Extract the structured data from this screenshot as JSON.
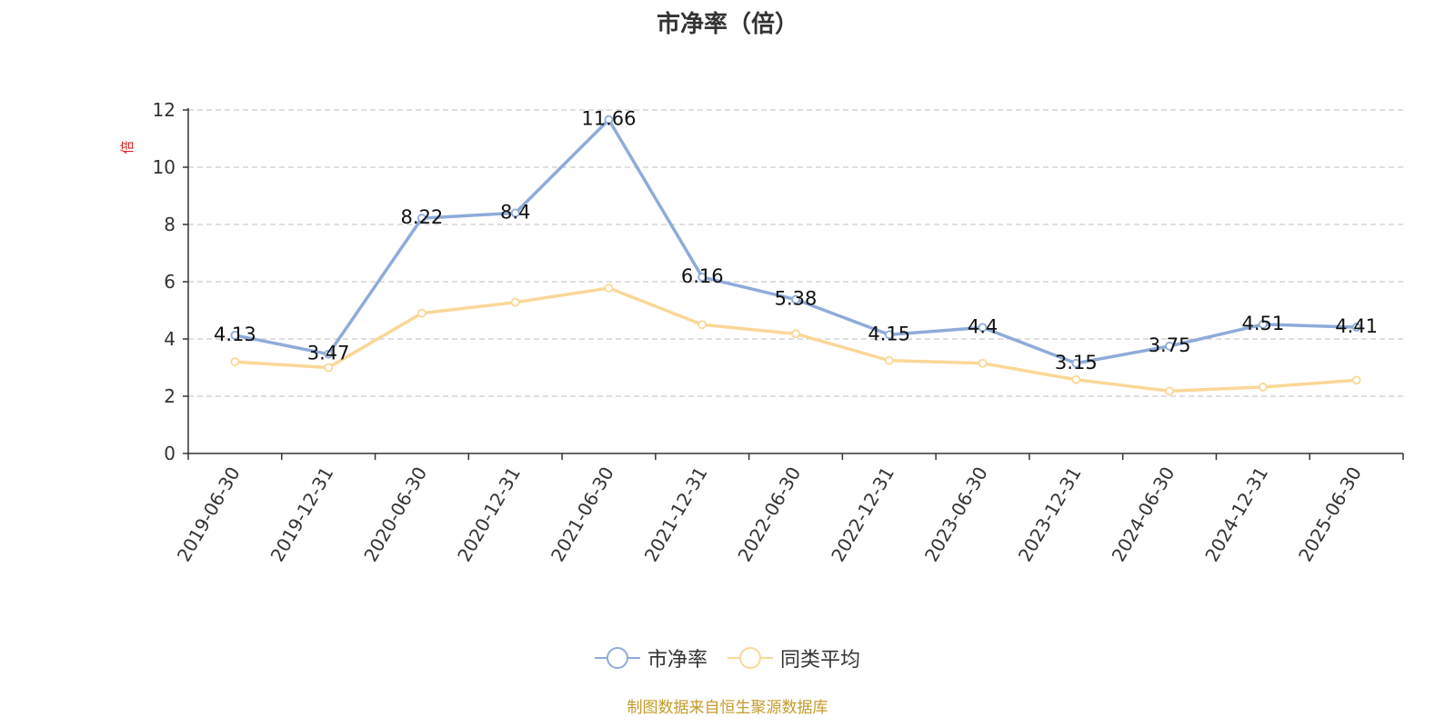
{
  "title": "市净率（倍）",
  "source_note": "制图数据来自恒生聚源数据库",
  "colors": {
    "series_1": "#8eabd8",
    "series_2": "#fad797",
    "grid": "#cccccc",
    "axis": "#333333",
    "ylabel": "#e02020"
  },
  "chart_data": {
    "type": "line",
    "title": "市净率（倍）",
    "xlabel": "",
    "ylabel": "倍",
    "ylim": [
      0,
      12
    ],
    "yticks": [
      0,
      2,
      4,
      6,
      8,
      10,
      12
    ],
    "grid": true,
    "legend_position": "bottom",
    "categories": [
      "2019-06-30",
      "2019-12-31",
      "2020-06-30",
      "2020-12-31",
      "2021-06-30",
      "2021-12-31",
      "2022-06-30",
      "2022-12-31",
      "2023-06-30",
      "2023-12-31",
      "2024-06-30",
      "2024-12-31",
      "2025-06-30"
    ],
    "series": [
      {
        "name": "市净率",
        "values": [
          4.13,
          3.47,
          8.22,
          8.4,
          11.66,
          6.16,
          5.38,
          4.15,
          4.4,
          3.15,
          3.75,
          4.51,
          4.41
        ],
        "show_labels": true
      },
      {
        "name": "同类平均",
        "values": [
          3.2,
          3.0,
          4.9,
          5.28,
          5.78,
          4.5,
          4.18,
          3.25,
          3.15,
          2.58,
          2.18,
          2.32,
          2.56
        ],
        "show_labels": false
      }
    ]
  }
}
